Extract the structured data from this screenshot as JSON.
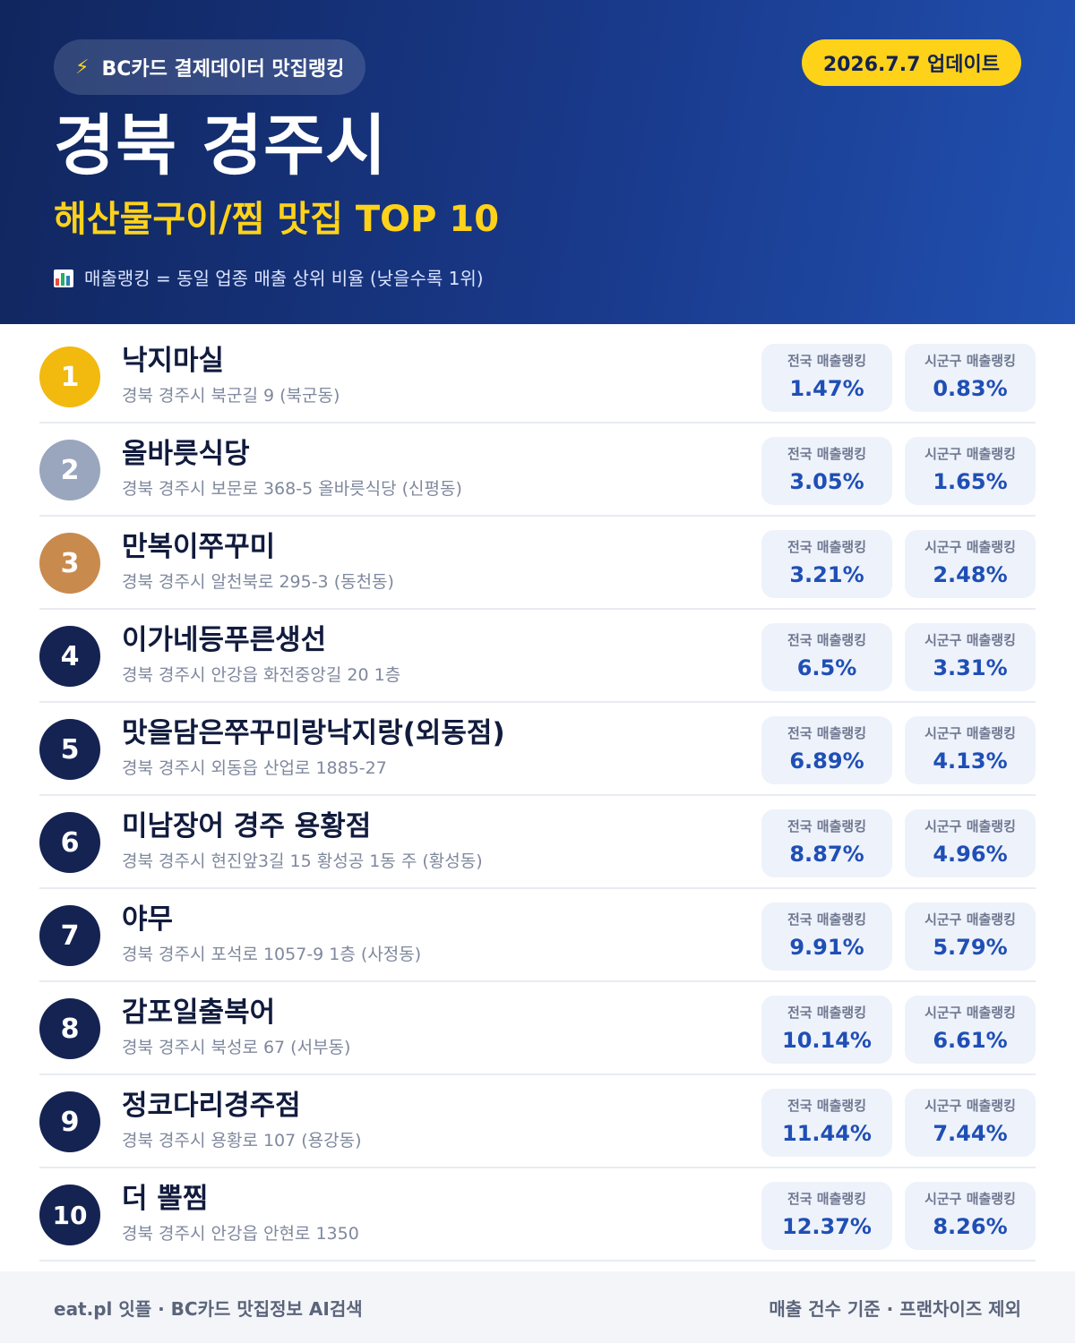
{
  "header": {
    "source_label": "BC카드 결제데이터 맛집랭킹",
    "bolt_icon": "⚡",
    "update_badge": "2026.7.7 업데이트",
    "city": "경북 경주시",
    "subtitle": "해산물구이/찜 맛집 TOP 10",
    "note": "매출랭킹 = 동일 업종 매출 상위 비율 (낮을수록 1위)"
  },
  "stat_labels": {
    "national": "전국 매출랭킹",
    "local": "시군구 매출랭킹"
  },
  "restaurants": [
    {
      "rank": "1",
      "name": "낙지마실",
      "address": "경북 경주시 북군길 9 (북군동)",
      "national": "1.47%",
      "local": "0.83%"
    },
    {
      "rank": "2",
      "name": "올바릇식당",
      "address": "경북 경주시 보문로 368-5 올바릇식당 (신평동)",
      "national": "3.05%",
      "local": "1.65%"
    },
    {
      "rank": "3",
      "name": "만복이쭈꾸미",
      "address": "경북 경주시 알천북로 295-3 (동천동)",
      "national": "3.21%",
      "local": "2.48%"
    },
    {
      "rank": "4",
      "name": "이가네등푸른생선",
      "address": "경북 경주시 안강읍 화전중앙길 20 1층",
      "national": "6.5%",
      "local": "3.31%"
    },
    {
      "rank": "5",
      "name": "맛을담은쭈꾸미랑낙지랑(외동점)",
      "address": "경북 경주시 외동읍 산업로 1885-27",
      "national": "6.89%",
      "local": "4.13%"
    },
    {
      "rank": "6",
      "name": "미남장어 경주 용황점",
      "address": "경북 경주시 현진앞3길 15 황성공 1동 주 (황성동)",
      "national": "8.87%",
      "local": "4.96%"
    },
    {
      "rank": "7",
      "name": "야무",
      "address": "경북 경주시 포석로 1057-9 1층 (사정동)",
      "national": "9.91%",
      "local": "5.79%"
    },
    {
      "rank": "8",
      "name": "감포일출복어",
      "address": "경북 경주시 북성로 67 (서부동)",
      "national": "10.14%",
      "local": "6.61%"
    },
    {
      "rank": "9",
      "name": "정코다리경주점",
      "address": "경북 경주시 용황로 107 (용강동)",
      "national": "11.44%",
      "local": "7.44%"
    },
    {
      "rank": "10",
      "name": "더 뽈찜",
      "address": "경북 경주시 안강읍 안현로 1350",
      "national": "12.37%",
      "local": "8.26%"
    }
  ],
  "footer": {
    "left": "eat.pl 잇플 · BC카드 맛집정보 AI검색",
    "right": "매출 건수 기준 · 프랜차이즈 제외"
  },
  "colors": {
    "header_start": "#10265e",
    "header_end": "#2150b0",
    "accent_yellow": "#ffd21a",
    "gold": "#f2b90f",
    "silver": "#9aa6bd",
    "bronze": "#c98a4e",
    "navy": "#142352",
    "value_blue": "#1f4fb5"
  }
}
